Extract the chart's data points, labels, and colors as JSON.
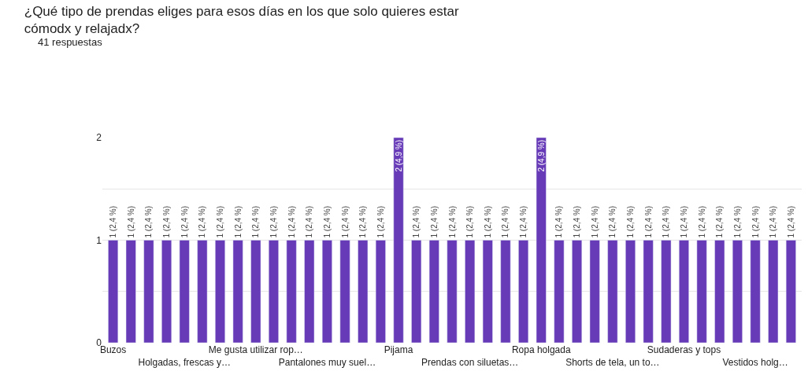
{
  "chart_data": {
    "type": "bar",
    "title": "¿Qué tipo de prendas eliges para esos días en los que solo quieres estar\ncómodx y relajadx?",
    "subtitle": "41 respuestas",
    "categories": [
      "Buzos",
      null,
      null,
      null,
      "Holgadas, frescas y…",
      null,
      null,
      null,
      "Me gusta utilizar rop…",
      null,
      null,
      null,
      "Pantalones muy suel…",
      null,
      null,
      null,
      "Pijama",
      null,
      null,
      null,
      "Prendas con siluetas…",
      null,
      null,
      null,
      "Ropa holgada",
      null,
      null,
      null,
      "Shorts de tela, un to…",
      null,
      null,
      null,
      "Sudaderas y tops",
      null,
      null,
      null,
      "Vestidos holg…",
      null,
      null
    ],
    "values": [
      1,
      1,
      1,
      1,
      1,
      1,
      1,
      1,
      1,
      1,
      1,
      1,
      1,
      1,
      1,
      1,
      2,
      1,
      1,
      1,
      1,
      1,
      1,
      1,
      2,
      1,
      1,
      1,
      1,
      1,
      1,
      1,
      1,
      1,
      1,
      1,
      1,
      1,
      1
    ],
    "value_labels": [
      "1 (2,4 %)",
      "1 (2,4 %)",
      "1 (2,4 %)",
      "1 (2,4 %)",
      "1 (2,4 %)",
      "1 (2,4 %)",
      "1 (2,4 %)",
      "1 (2,4 %)",
      "1 (2,4 %)",
      "1 (2,4 %)",
      "1 (2,4 %)",
      "1 (2,4 %)",
      "1 (2,4 %)",
      "1 (2,4 %)",
      "1 (2,4 %)",
      "1 (2,4 %)",
      "2 (4,9 %)",
      "1 (2,4 %)",
      "1 (2,4 %)",
      "1 (2,4 %)",
      "1 (2,4 %)",
      "1 (2,4 %)",
      "1 (2,4 %)",
      "1 (2,4 %)",
      "2 (4,9 %)",
      "1 (2,4 %)",
      "1 (2,4 %)",
      "1 (2,4 %)",
      "1 (2,4 %)",
      "1 (2,4 %)",
      "1 (2,4 %)",
      "1 (2,4 %)",
      "1 (2,4 %)",
      "1 (2,4 %)",
      "1 (2,4 %)",
      "1 (2,4 %)",
      "1 (2,4 %)",
      "1 (2,4 %)",
      "1 (2,4 %)"
    ],
    "color": "#673ab7",
    "ylim": [
      0,
      2
    ],
    "yticks": [
      0,
      {
        "value": 0.5,
        "label": null
      },
      1,
      {
        "value": 1.5,
        "label": null
      },
      2
    ],
    "grid": "y",
    "legend": false
  }
}
